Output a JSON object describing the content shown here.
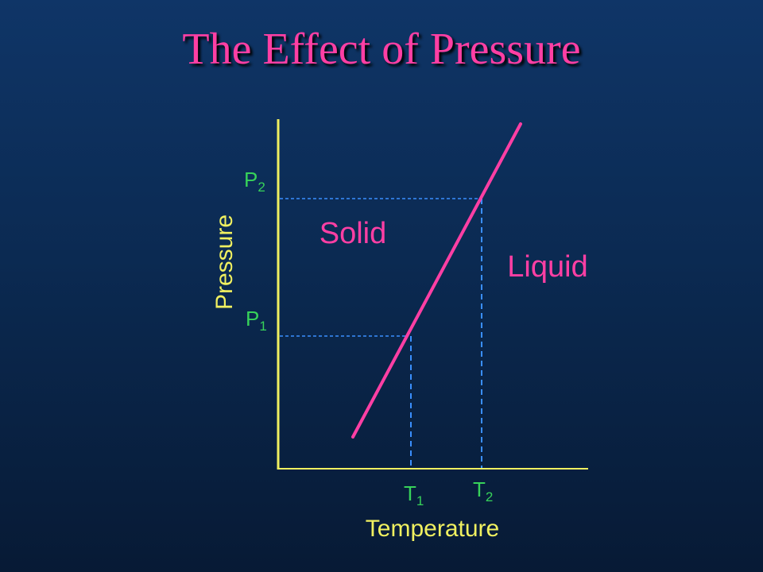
{
  "slide": {
    "title": "The Effect of Pressure"
  },
  "diagram": {
    "x_axis_label": "Temperature",
    "y_axis_label": "Pressure",
    "regions": {
      "left": "Solid",
      "right": "Liquid"
    },
    "ticks": {
      "p1": {
        "letter": "P",
        "sub": "1"
      },
      "p2": {
        "letter": "P",
        "sub": "2"
      },
      "t1": {
        "letter": "T",
        "sub": "1"
      },
      "t2": {
        "letter": "T",
        "sub": "2"
      }
    },
    "colors": {
      "axes": "#f0f060",
      "boundary_line": "#ff3fa4",
      "guide_lines": "#3a8fff",
      "tick_labels": "#37d25a",
      "axis_labels": "#f0f060",
      "region_labels": "#ff3fa4",
      "title": "#ff3fa4"
    }
  }
}
